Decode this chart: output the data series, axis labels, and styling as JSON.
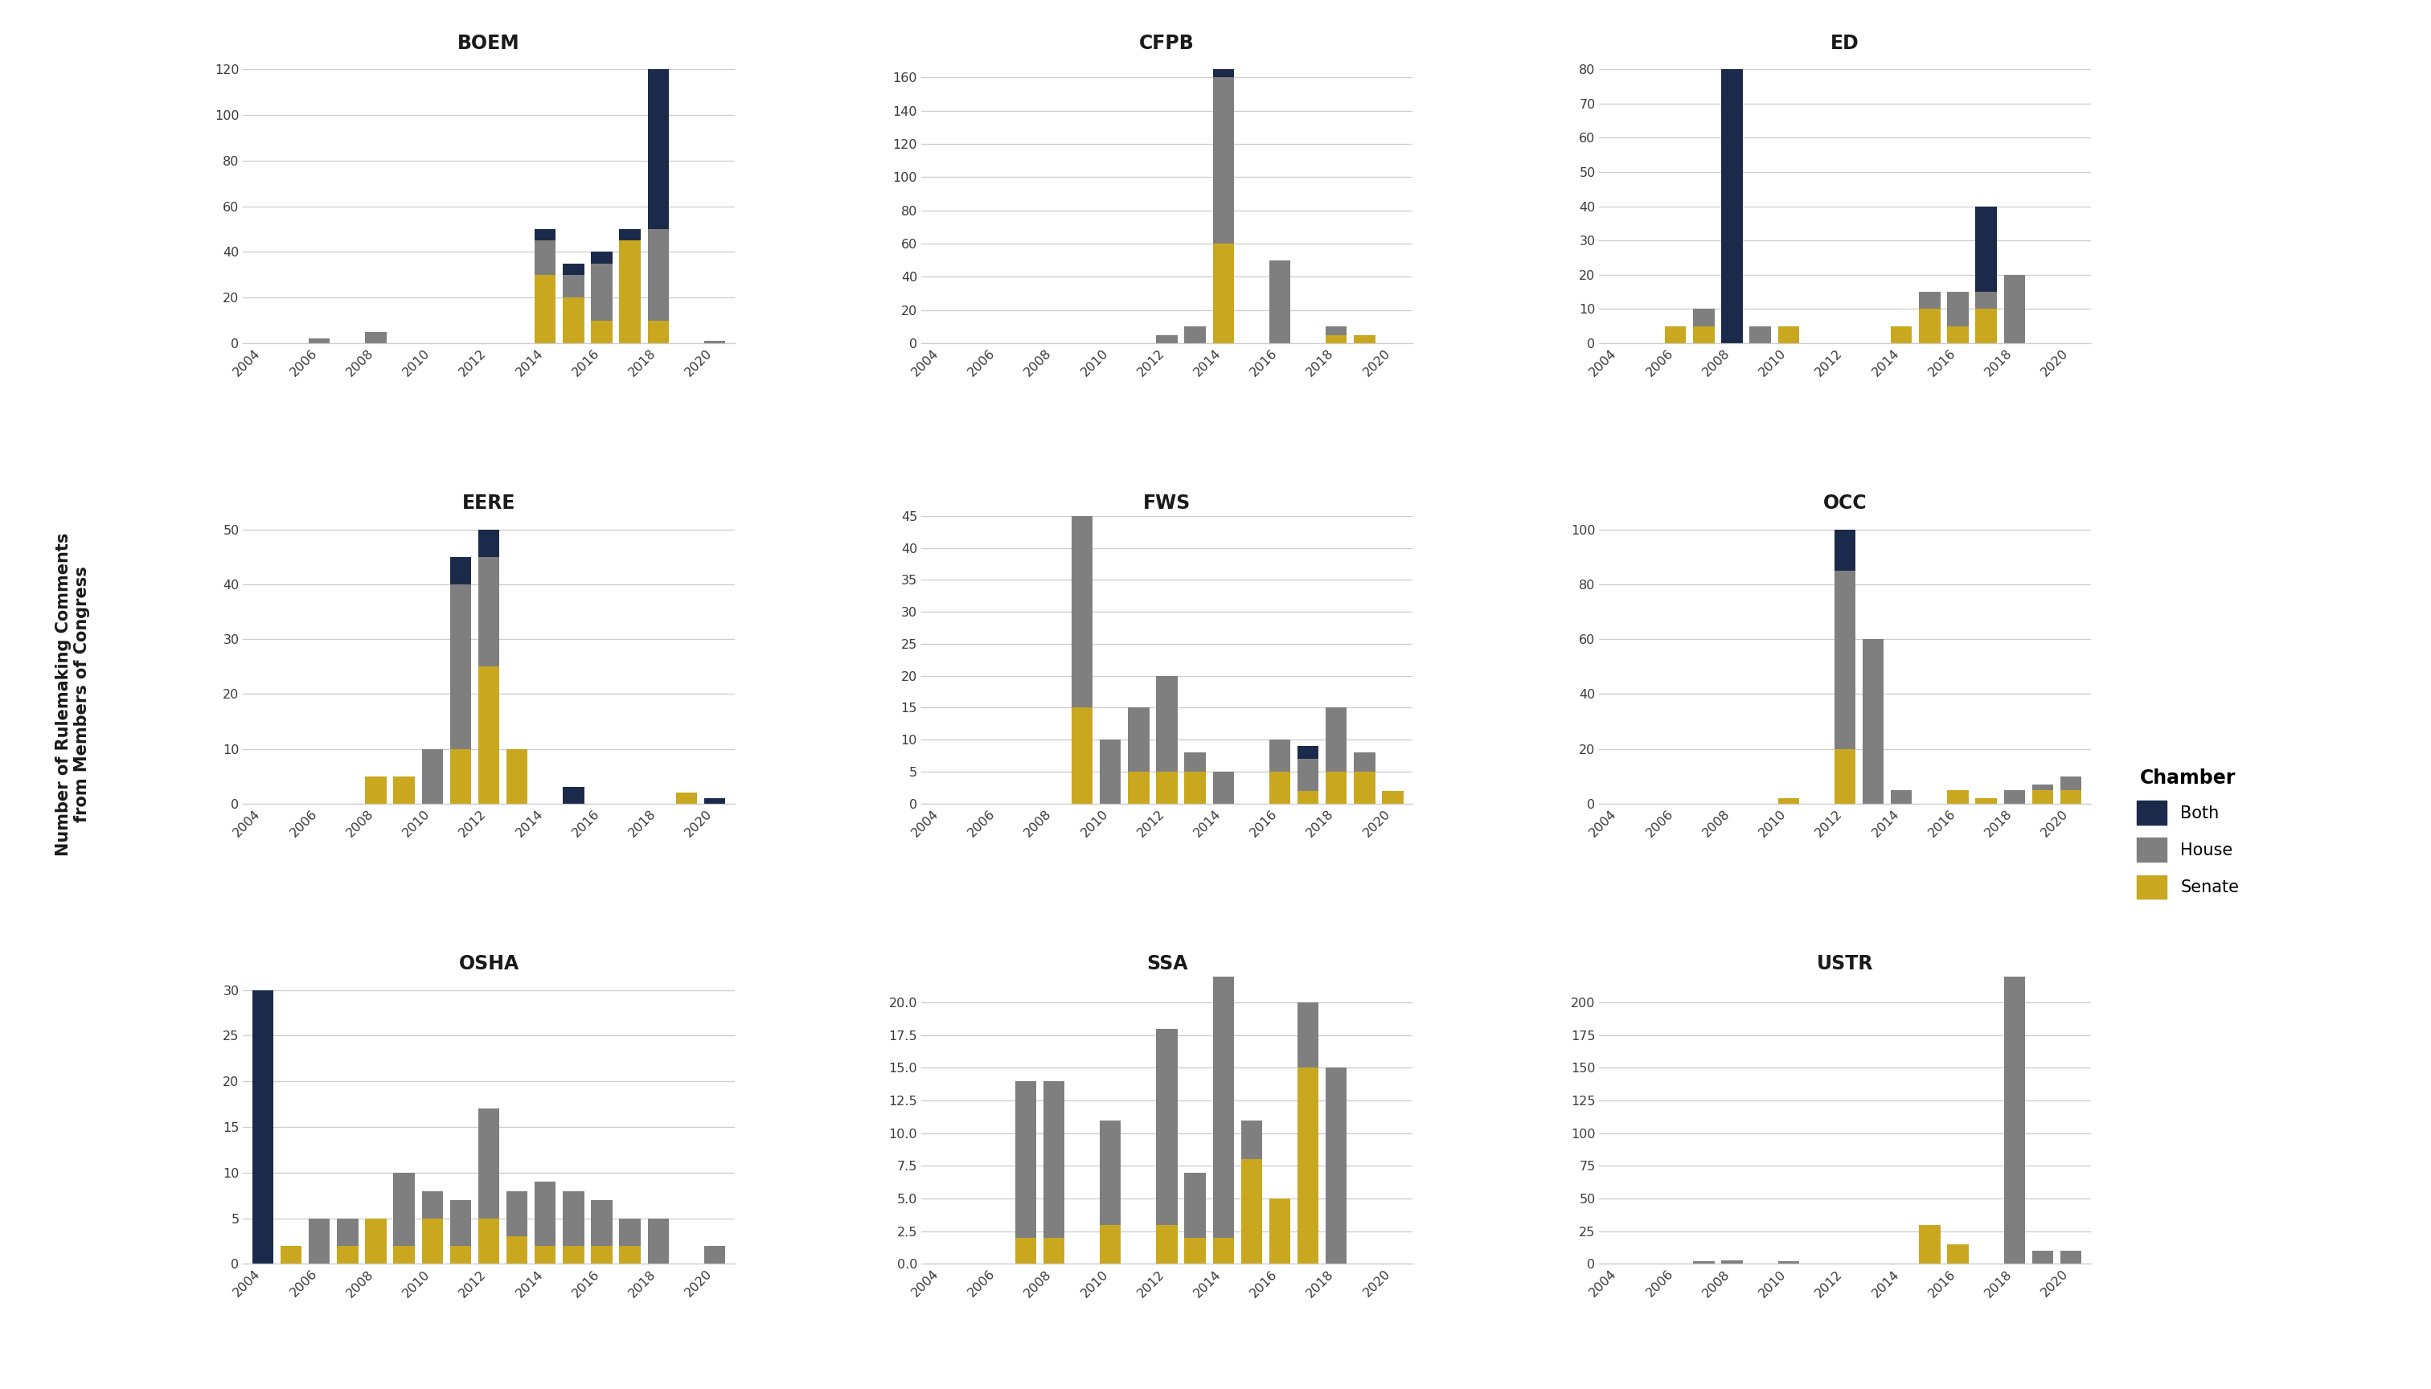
{
  "years": [
    2004,
    2005,
    2006,
    2007,
    2008,
    2009,
    2010,
    2011,
    2012,
    2013,
    2014,
    2015,
    2016,
    2017,
    2018,
    2019,
    2020
  ],
  "agencies": [
    "BOEM",
    "CFPB",
    "ED",
    "EERE",
    "FWS",
    "OCC",
    "OSHA",
    "SSA",
    "USTR"
  ],
  "colors": {
    "Senate": "#c9a820",
    "House": "#7f7f7f",
    "Both": "#1b2a4a"
  },
  "data": {
    "BOEM": {
      "Senate": [
        0,
        0,
        0,
        0,
        0,
        0,
        0,
        0,
        0,
        0,
        30,
        20,
        10,
        45,
        10,
        0,
        0
      ],
      "House": [
        0,
        0,
        2,
        0,
        5,
        0,
        0,
        0,
        0,
        0,
        15,
        10,
        25,
        0,
        40,
        0,
        1
      ],
      "Both": [
        0,
        0,
        0,
        0,
        0,
        0,
        0,
        0,
        0,
        0,
        5,
        5,
        5,
        5,
        70,
        0,
        0
      ]
    },
    "CFPB": {
      "Senate": [
        0,
        0,
        0,
        0,
        0,
        0,
        0,
        0,
        0,
        0,
        60,
        0,
        0,
        0,
        5,
        5,
        0
      ],
      "House": [
        0,
        0,
        0,
        0,
        0,
        0,
        0,
        0,
        5,
        10,
        100,
        0,
        50,
        0,
        5,
        0,
        0
      ],
      "Both": [
        0,
        0,
        0,
        0,
        0,
        0,
        0,
        0,
        0,
        0,
        5,
        0,
        0,
        0,
        0,
        0,
        0
      ]
    },
    "ED": {
      "Senate": [
        0,
        0,
        5,
        5,
        0,
        0,
        5,
        0,
        0,
        0,
        5,
        10,
        5,
        10,
        0,
        0,
        0
      ],
      "House": [
        0,
        0,
        0,
        5,
        0,
        5,
        0,
        0,
        0,
        0,
        0,
        5,
        10,
        5,
        20,
        0,
        0
      ],
      "Both": [
        0,
        0,
        0,
        0,
        80,
        0,
        0,
        0,
        0,
        0,
        0,
        0,
        0,
        25,
        0,
        0,
        0
      ]
    },
    "EERE": {
      "Senate": [
        0,
        0,
        0,
        0,
        5,
        5,
        0,
        10,
        25,
        10,
        0,
        0,
        0,
        0,
        0,
        2,
        0
      ],
      "House": [
        0,
        0,
        0,
        0,
        0,
        0,
        10,
        30,
        20,
        0,
        0,
        0,
        0,
        0,
        0,
        0,
        0
      ],
      "Both": [
        0,
        0,
        0,
        0,
        0,
        0,
        0,
        5,
        5,
        0,
        0,
        3,
        0,
        0,
        0,
        0,
        1
      ]
    },
    "FWS": {
      "Senate": [
        0,
        0,
        0,
        0,
        0,
        15,
        0,
        5,
        5,
        5,
        0,
        0,
        5,
        2,
        5,
        5,
        2
      ],
      "House": [
        0,
        0,
        0,
        0,
        0,
        30,
        10,
        10,
        15,
        3,
        5,
        0,
        5,
        5,
        10,
        3,
        0
      ],
      "Both": [
        0,
        0,
        0,
        0,
        0,
        0,
        0,
        0,
        0,
        0,
        0,
        0,
        0,
        2,
        0,
        0,
        0
      ]
    },
    "OCC": {
      "Senate": [
        0,
        0,
        0,
        0,
        0,
        0,
        2,
        0,
        20,
        0,
        0,
        0,
        5,
        2,
        0,
        5,
        5
      ],
      "House": [
        0,
        0,
        0,
        0,
        0,
        0,
        0,
        0,
        65,
        60,
        5,
        0,
        0,
        0,
        5,
        2,
        5
      ],
      "Both": [
        0,
        0,
        0,
        0,
        0,
        0,
        0,
        0,
        15,
        0,
        0,
        0,
        0,
        0,
        0,
        0,
        0
      ]
    },
    "OSHA": {
      "Senate": [
        0,
        2,
        0,
        2,
        5,
        2,
        5,
        2,
        5,
        3,
        2,
        2,
        2,
        2,
        0,
        0,
        0
      ],
      "House": [
        0,
        0,
        5,
        3,
        0,
        8,
        3,
        5,
        12,
        5,
        7,
        6,
        5,
        3,
        5,
        0,
        2
      ],
      "Both": [
        30,
        0,
        0,
        0,
        0,
        0,
        0,
        0,
        0,
        0,
        0,
        0,
        0,
        0,
        0,
        0,
        0
      ]
    },
    "SSA": {
      "Senate": [
        0,
        0,
        0,
        2,
        2,
        0,
        3,
        0,
        3,
        2,
        2,
        8,
        5,
        15,
        0,
        0,
        0
      ],
      "House": [
        0,
        0,
        0,
        12,
        12,
        0,
        8,
        0,
        15,
        5,
        20,
        3,
        0,
        5,
        15,
        0,
        0
      ],
      "Both": [
        0,
        0,
        0,
        0,
        0,
        0,
        0,
        0,
        0,
        0,
        0,
        0,
        0,
        0,
        0,
        0,
        0
      ]
    },
    "USTR": {
      "Senate": [
        0,
        0,
        0,
        0,
        0,
        0,
        0,
        0,
        0,
        0,
        0,
        30,
        15,
        0,
        0,
        0,
        0
      ],
      "House": [
        0,
        0,
        0,
        2,
        3,
        0,
        2,
        0,
        0,
        0,
        0,
        0,
        0,
        0,
        220,
        10,
        10
      ],
      "Both": [
        0,
        0,
        0,
        0,
        0,
        0,
        0,
        0,
        0,
        0,
        0,
        0,
        0,
        0,
        0,
        0,
        0
      ]
    }
  },
  "ylabel": "Number of Rulemaking Comments\nfrom Members of Congress",
  "background_color": "#ffffff",
  "grid_color": "#cccccc",
  "text_color": "#3a3a3a"
}
